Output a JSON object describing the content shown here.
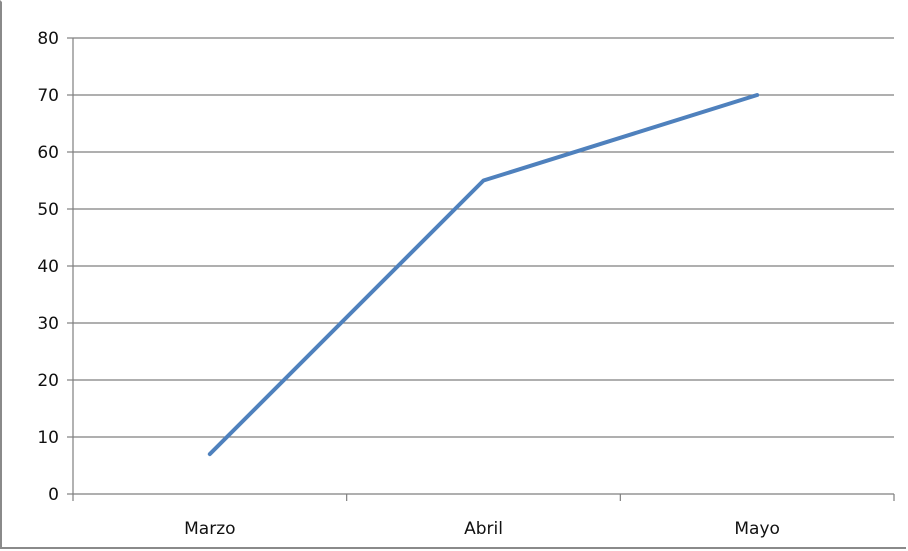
{
  "chart_data": {
    "type": "line",
    "categories": [
      "Marzo",
      "Abril",
      "Mayo"
    ],
    "series": [
      {
        "values": [
          7,
          55,
          70
        ]
      }
    ],
    "title": "",
    "xlabel": "",
    "ylabel": "",
    "ylim": [
      0,
      80
    ],
    "yticks": [
      "0",
      "10",
      "20",
      "30",
      "40",
      "50",
      "60",
      "70",
      "80"
    ],
    "grid": true,
    "legend": "none",
    "colors": {
      "line": "#4f81bd",
      "grid": "#7f7f7f",
      "axis": "#7f7f7f",
      "text": "#111111"
    }
  }
}
